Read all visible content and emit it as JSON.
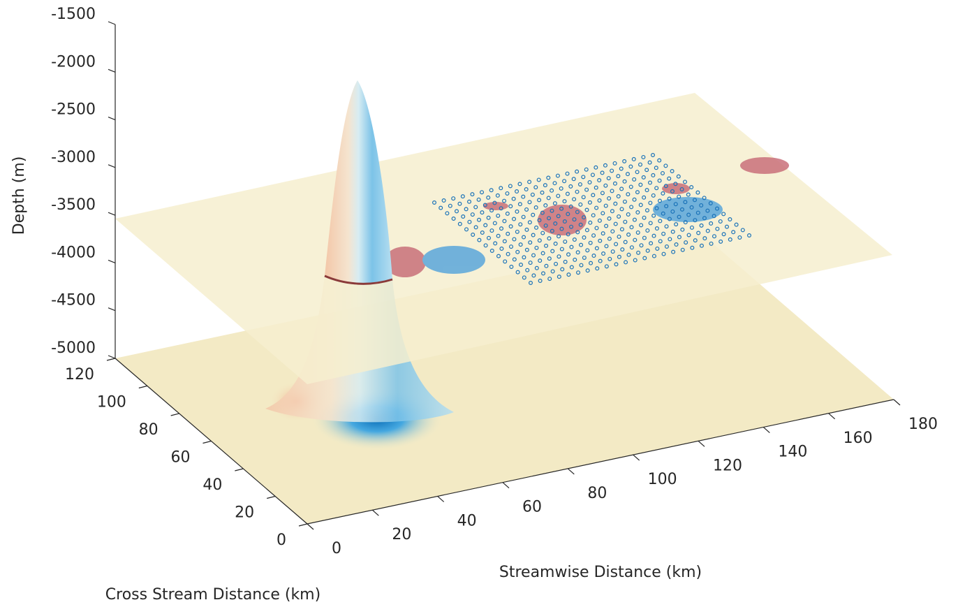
{
  "chart_data": {
    "type": "surface3d",
    "xlabel": "Streamwise Distance (km)",
    "ylabel": "Cross Stream Distance (km)",
    "zlabel": "Depth (m)",
    "xlim": [
      0,
      180
    ],
    "ylim": [
      0,
      120
    ],
    "zlim": [
      -5000,
      -1500
    ],
    "xticks": [
      0,
      20,
      40,
      60,
      80,
      100,
      120,
      140,
      160,
      180
    ],
    "yticks": [
      0,
      20,
      40,
      60,
      80,
      100,
      120
    ],
    "zticks": [
      -5000,
      -4500,
      -4000,
      -3500,
      -3000,
      -2500,
      -2000,
      -1500
    ]
  }
}
